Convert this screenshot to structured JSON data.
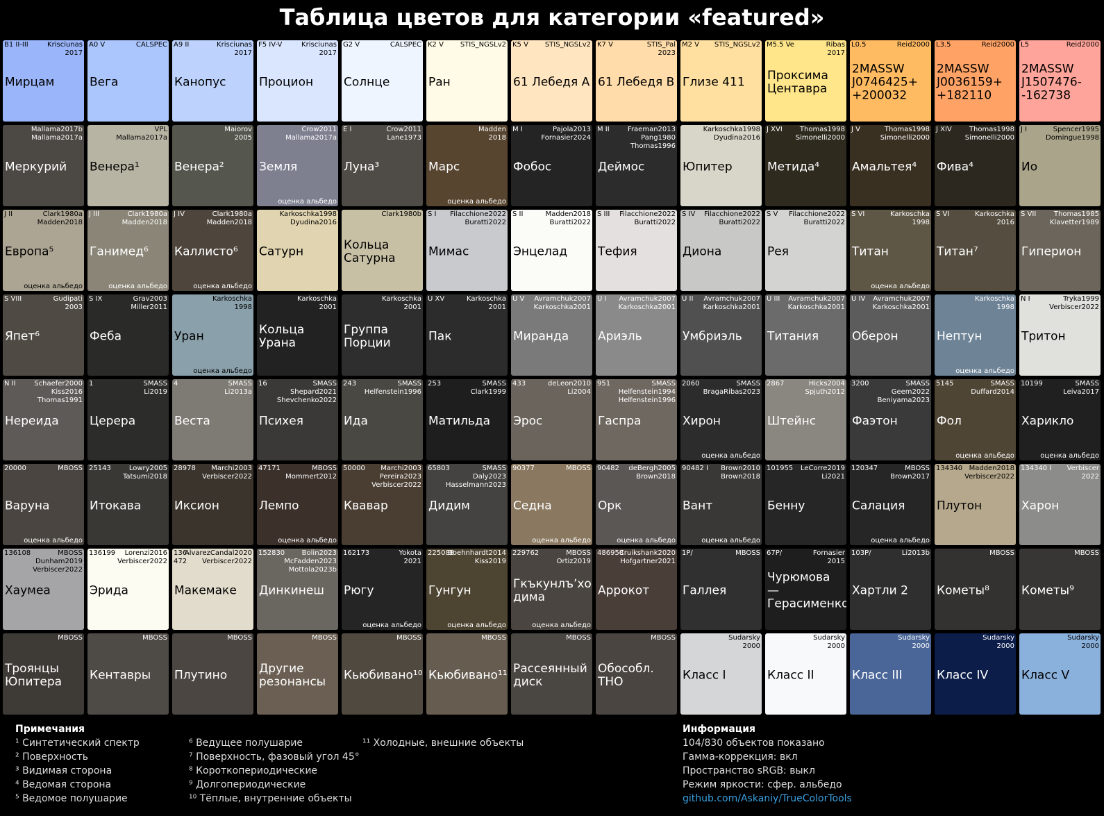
{
  "title": "Таблица цветов для категории «featured»",
  "tiles": [
    {
      "tag": "B1 II-III",
      "ref": "Krisciunas\n2017",
      "name": "Мирцам",
      "color": "#9ab5fa"
    },
    {
      "tag": "A0 V",
      "ref": "CALSPEC",
      "name": "Вега",
      "color": "#abc5fd"
    },
    {
      "tag": "A9 II",
      "ref": "Krisciunas\n2017",
      "name": "Канопус",
      "color": "#bdd3fd"
    },
    {
      "tag": "F5 IV-V",
      "ref": "Krisciunas\n2017",
      "name": "Процион",
      "color": "#d9e6fe"
    },
    {
      "tag": "G2 V",
      "ref": "CALSPEC",
      "name": "Солнце",
      "color": "#eef5ff"
    },
    {
      "tag": "K2 V",
      "ref": "STIS_NGSLv2",
      "name": "Ран",
      "color": "#fffbe6"
    },
    {
      "tag": "K5 V",
      "ref": "STIS_NGSLv2",
      "name": "61 Лебедя А",
      "color": "#ffe5c0"
    },
    {
      "tag": "K7 V",
      "ref": "STIS_Pal\n2023",
      "name": "61 Лебедя B",
      "color": "#ffdcaa"
    },
    {
      "tag": "M2 V",
      "ref": "STIS_NGSLv2",
      "name": "Глизе 411",
      "color": "#ffe0a0"
    },
    {
      "tag": "M5.5 Ve",
      "ref": "Ribas\n2017",
      "name": "Проксима\nЦентавра",
      "color": "#ffe68a"
    },
    {
      "tag": "L0.5",
      "ref": "Reid2000",
      "name": "2MASSW\nJ0746425+\n+200032",
      "color": "#ffbb62"
    },
    {
      "tag": "L3.5",
      "ref": "Reid2000",
      "name": "2MASSW\nJ0036159+\n+182110",
      "color": "#ffa265"
    },
    {
      "tag": "L5",
      "ref": "Reid2000",
      "name": "2MASSW\nJ1507476-\n-162738",
      "color": "#ffa49a"
    },
    {
      "ref": "Mallama2017b\nMallama2017a",
      "name": "Меркурий",
      "color": "#4c4944"
    },
    {
      "ref": "VPL\nMallama2017a",
      "name": "Венера¹",
      "color": "#b8b4a4"
    },
    {
      "ref": "Maiorov\n2005",
      "name": "Венера²",
      "color": "#55564e"
    },
    {
      "ref": "Crow2011\nMallama2017a",
      "name": "Земля",
      "note": "оценка альбедо",
      "color": "#7e8090"
    },
    {
      "tag": "E I",
      "ref": "Crow2011\nLane1973",
      "name": "Луна³",
      "color": "#4f4b46"
    },
    {
      "ref": "Madden\n2018",
      "name": "Марс",
      "note": "оценка альбедо",
      "color": "#574530"
    },
    {
      "tag": "M I",
      "ref": "Pajola2013\nFornasier2024",
      "name": "Фобос",
      "color": "#242424"
    },
    {
      "tag": "M II",
      "ref": "Fraeman2013\nPang1980\nThomas1996",
      "name": "Деймос",
      "color": "#2c2c2c"
    },
    {
      "ref": "Karkoschka1998\nDyudina2016",
      "name": "Юпитер",
      "color": "#d8d6c8"
    },
    {
      "tag": "J XVI",
      "ref": "Thomas1998\nSimonelli2000",
      "name": "Метида⁴",
      "color": "#2e2a1e"
    },
    {
      "tag": "J V",
      "ref": "Thomas1998\nSimonelli2000",
      "name": "Амальтея⁴",
      "color": "#3a3022"
    },
    {
      "tag": "J XIV",
      "ref": "Thomas1998\nSimonelli2000",
      "name": "Фива⁴",
      "color": "#2c2820"
    },
    {
      "tag": "J I",
      "ref": "Spencer1995\nDomingue1998",
      "name": "Ио",
      "color": "#a9a48a"
    },
    {
      "tag": "J II",
      "ref": "Clark1980a\nMadden2018",
      "name": "Европа⁵",
      "note": "оценка альбедо",
      "color": "#ada593"
    },
    {
      "tag": "J III",
      "ref": "Clark1980a\nMadden2018",
      "name": "Ганимед⁶",
      "note": "оценка альбедо",
      "color": "#8a8577"
    },
    {
      "tag": "J IV",
      "ref": "Clark1980a\nMadden2018",
      "name": "Каллисто⁶",
      "note": "оценка альбедо",
      "color": "#4e463d"
    },
    {
      "ref": "Karkoschka1998\nDyudina2016",
      "name": "Сатурн",
      "color": "#e1d4b0"
    },
    {
      "ref": "Clark1980b",
      "name": "Кольца\nСатурна",
      "color": "#c8c0a5"
    },
    {
      "tag": "S I",
      "ref": "Filacchione2022\nBuratti2022",
      "name": "Мимас",
      "color": "#c9cace"
    },
    {
      "tag": "S II",
      "ref": "Madden2018\nBuratti2022",
      "name": "Энцелад",
      "color": "#fbfbf8"
    },
    {
      "tag": "S III",
      "ref": "Filacchione2022\nBuratti2022",
      "name": "Тефия",
      "color": "#e3e0df"
    },
    {
      "tag": "S IV",
      "ref": "Filacchione2022\nBuratti2022",
      "name": "Диона",
      "color": "#c8c8c7"
    },
    {
      "tag": "S V",
      "ref": "Filacchione2022\nBuratti2022",
      "name": "Рея",
      "color": "#d3d3d2"
    },
    {
      "tag": "S VI",
      "ref": "Karkoschka\n1998",
      "name": "Титан",
      "note": "оценка альбедо",
      "color": "#5f5746"
    },
    {
      "tag": "S VI",
      "ref": "Karkoschka\n2016",
      "name": "Титан⁷",
      "color": "#554e40"
    },
    {
      "tag": "S VII",
      "ref": "Thomas1985\nKlavetter1989",
      "name": "Гиперион",
      "color": "#6b655b"
    },
    {
      "tag": "S VIII",
      "ref": "Gudipati\n2003",
      "name": "Япет⁶",
      "color": "#4f4a43"
    },
    {
      "tag": "S IX",
      "ref": "Grav2003\nMiller2011",
      "name": "Феба",
      "color": "#2a2a29"
    },
    {
      "ref": "Karkoschka\n1998",
      "name": "Уран",
      "note": "оценка альбедо",
      "color": "#8aa0aa"
    },
    {
      "ref": "Karkoschka\n2001",
      "name": "Кольца Урана",
      "color": "#222222"
    },
    {
      "ref": "Karkoschka\n2001",
      "name": "Группа\nПорции",
      "color": "#2e2e2e"
    },
    {
      "tag": "U XV",
      "ref": "Karkoschka\n2001",
      "name": "Пак",
      "color": "#2c2c2c"
    },
    {
      "tag": "U V",
      "ref": "Avramchuk2007\nKarkoschka2001",
      "name": "Миранда",
      "color": "#7a7a7a"
    },
    {
      "tag": "U I",
      "ref": "Avramchuk2007\nKarkoschka2001",
      "name": "Ариэль",
      "color": "#8a8a8a"
    },
    {
      "tag": "U II",
      "ref": "Avramchuk2007\nKarkoschka2001",
      "name": "Умбриэль",
      "color": "#505050"
    },
    {
      "tag": "U III",
      "ref": "Avramchuk2007\nKarkoschka2001",
      "name": "Титания",
      "color": "#6b6b6b"
    },
    {
      "tag": "U IV",
      "ref": "Avramchuk2007\nKarkoschka2001",
      "name": "Оберон",
      "color": "#5c5c5c"
    },
    {
      "ref": "Karkoschka\n1998",
      "name": "Нептун",
      "note": "оценка альбедо",
      "color": "#6e8396"
    },
    {
      "tag": "N I",
      "ref": "Tryka1999\nVerbiscer2022",
      "name": "Тритон",
      "color": "#e0e0dc"
    },
    {
      "tag": "N II",
      "ref": "Schaefer2000\nKiss2016\nThomas1991",
      "name": "Нереида",
      "color": "#5e5a57"
    },
    {
      "tag": "1",
      "ref": "SMASS\nLi2019",
      "name": "Церера",
      "color": "#2c2c2b"
    },
    {
      "tag": "4",
      "ref": "SMASS\nLi2013a",
      "name": "Веста",
      "color": "#7e7b75"
    },
    {
      "tag": "16",
      "ref": "SMASS\nShepard2021\nShevchenko2022",
      "name": "Психея",
      "color": "#3a3937"
    },
    {
      "tag": "243",
      "ref": "SMASS\nHelfenstein1996",
      "name": "Ида",
      "color": "#4a4843"
    },
    {
      "tag": "253",
      "ref": "SMASS\nClark1999",
      "name": "Матильда",
      "color": "#1e1e1e"
    },
    {
      "tag": "433",
      "ref": "deLeon2010\nLi2004",
      "name": "Эрос",
      "color": "#6a645c"
    },
    {
      "tag": "951",
      "ref": "SMASS\nHelfenstein1994\nHelfenstein1996",
      "name": "Гаспра",
      "color": "#6f6860"
    },
    {
      "tag": "2060",
      "ref": "SMASS\nBragaRibas2023",
      "name": "Хирон",
      "note": "оценка альбедо",
      "color": "#2c2c2c"
    },
    {
      "tag": "2867",
      "ref": "Hicks2004\nSpjuth2012",
      "name": "Штейнс",
      "color": "#8a8680"
    },
    {
      "tag": "3200",
      "ref": "SMASS\nGeem2022\nBeniyama2023",
      "name": "Фаэтон",
      "color": "#3a3a3a"
    },
    {
      "tag": "5145",
      "ref": "SMASS\nDuffard2014",
      "name": "Фол",
      "note": "оценка альбедо",
      "color": "#4f4535"
    },
    {
      "tag": "10199",
      "ref": "SMASS\nLeiva2017",
      "name": "Харикло",
      "note": "оценка альбедо",
      "color": "#202020"
    },
    {
      "tag": "20000",
      "ref": "MBOSS",
      "name": "Варуна",
      "note": "оценка альбедо",
      "color": "#4a4540"
    },
    {
      "tag": "25143",
      "ref": "Lowry2005\nTatsumi2018",
      "name": "Итокава",
      "color": "#3a3835"
    },
    {
      "tag": "28978",
      "ref": "Marchi2003\nVerbiscer2022",
      "name": "Иксион",
      "color": "#3a342c"
    },
    {
      "tag": "47171",
      "ref": "MBOSS\nMommert2012",
      "name": "Лемпо",
      "note": "оценка альбедо",
      "color": "#3b302a"
    },
    {
      "tag": "50000",
      "ref": "Marchi2003\nPereira2023\nVerbiscer2022",
      "name": "Квавар",
      "color": "#4a3e32"
    },
    {
      "tag": "65803",
      "ref": "SMASS\nDaly2023\nHasselmann2023",
      "name": "Дидим",
      "color": "#454341"
    },
    {
      "tag": "90377",
      "ref": "MBOSS",
      "name": "Седна",
      "note": "оценка альбедо",
      "color": "#8a7860"
    },
    {
      "tag": "90482",
      "ref": "deBergh2005\nBrown2018",
      "name": "Орк",
      "note": "оценка альбедо",
      "color": "#5a5755"
    },
    {
      "tag": "90482 I",
      "ref": "Brown2010\nBrown2018",
      "name": "Вант",
      "note": "оценка альбедо",
      "color": "#3a3836"
    },
    {
      "tag": "101955",
      "ref": "LeCorre2019\nLi2021",
      "name": "Бенну",
      "color": "#262626"
    },
    {
      "tag": "120347",
      "ref": "MBOSS\nBrown2017",
      "name": "Салация",
      "note": "оценка альбедо",
      "color": "#262626"
    },
    {
      "tag": "134340",
      "ref": "Madden2018\nVerbiscer2022",
      "name": "Плутон",
      "color": "#b6a88c"
    },
    {
      "tag": "134340 I",
      "ref": "Verbiscer\n2022",
      "name": "Харон",
      "color": "#8c8c8a"
    },
    {
      "tag": "136108",
      "ref": "MBOSS\nDunham2019\nVerbiscer2022",
      "name": "Хаумеа",
      "color": "#a5a5a8"
    },
    {
      "tag": "136199",
      "ref": "Lorenzi2016\nVerbiscer2022",
      "name": "Эрида",
      "color": "#fdfcf3"
    },
    {
      "tag": "136-\n472",
      "ref": "AlvarezCandal2020\nVerbiscer2022",
      "name": "Макемаке",
      "color": "#e2dccc"
    },
    {
      "tag": "152830",
      "ref": "Bolin2023\nMcFadden2023\nMottola2023b",
      "name": "Динкинеш",
      "color": "#6a6660"
    },
    {
      "tag": "162173",
      "ref": "Yokota\n2021",
      "name": "Рюгу",
      "note": "оценка альбедо",
      "color": "#252525"
    },
    {
      "tag": "225088",
      "ref": "Boehnhardt2014\nKiss2019",
      "name": "Гунгун",
      "note": "оценка альбедо",
      "color": "#4e4432"
    },
    {
      "tag": "229762",
      "ref": "MBOSS\nOrtiz2019",
      "name": "Гкъкунлъʼхом-\nдима",
      "note": "оценка альбедо",
      "color": "#4a4540"
    },
    {
      "tag": "486958",
      "ref": "Cruikshank2020\nHofgartner2021",
      "name": "Аррокот",
      "color": "#4a3e38"
    },
    {
      "tag": "1P/",
      "ref": "MBOSS",
      "name": "Галлея",
      "color": "#303030"
    },
    {
      "tag": "67P/",
      "ref": "Fornasier\n2015",
      "name": "Чурюмова —\nГерасименко",
      "color": "#1e1e1e"
    },
    {
      "tag": "103P/",
      "ref": "Li2013b",
      "name": "Хартли 2",
      "color": "#2f2f2f"
    },
    {
      "ref": "MBOSS",
      "name": "Кометы⁸",
      "color": "#333231"
    },
    {
      "ref": "MBOSS",
      "name": "Кометы⁹",
      "color": "#383634"
    },
    {
      "ref": "MBOSS",
      "name": "Троянцы\nЮпитера",
      "color": "#3e3b37"
    },
    {
      "ref": "MBOSS",
      "name": "Кентавры",
      "color": "#4e4a45"
    },
    {
      "ref": "MBOSS",
      "name": "Плутино",
      "color": "#4b4641"
    },
    {
      "ref": "MBOSS",
      "name": "Другие\nрезонансы",
      "color": "#6a5f52"
    },
    {
      "ref": "MBOSS",
      "name": "Кьюбивано¹⁰",
      "color": "#50493f"
    },
    {
      "ref": "MBOSS",
      "name": "Кьюбивано¹¹",
      "color": "#665d50"
    },
    {
      "ref": "MBOSS",
      "name": "Рассеянный\nдиск",
      "color": "#4a4642"
    },
    {
      "ref": "MBOSS",
      "name": "Обособл. ТНО",
      "color": "#4a4540"
    },
    {
      "ref": "Sudarsky\n2000",
      "name": "Класс I",
      "color": "#d5d6d8"
    },
    {
      "ref": "Sudarsky\n2000",
      "name": "Класс II",
      "color": "#f8f9fb"
    },
    {
      "ref": "Sudarsky\n2000",
      "name": "Класс III",
      "color": "#4a6698"
    },
    {
      "ref": "Sudarsky\n2000",
      "name": "Класс IV",
      "color": "#0c1d4a"
    },
    {
      "ref": "Sudarsky\n2000",
      "name": "Класс V",
      "color": "#8ab0dc"
    }
  ],
  "notes": {
    "heading": "Примечания",
    "items": [
      "¹ Синтетический спектр",
      "² Поверхность",
      "³ Видимая сторона",
      "⁴ Ведомая сторона",
      "⁵ Ведомое полушарие",
      "⁶ Ведущее полушарие",
      "⁷ Поверхность, фазовый угол 45°",
      "⁸ Короткопериодические",
      "⁹ Долгопериодические",
      "¹⁰ Тёплые, внутренние объекты",
      "¹¹ Холодные, внешние объекты"
    ]
  },
  "info": {
    "heading": "Информация",
    "lines": [
      "104/830 объектов показано",
      "Гамма-коррекция: вкл",
      "Пространство sRGB: выкл",
      "Режим яркости: сфер. альбедо"
    ],
    "link": "github.com/Askaniy/TrueColorTools"
  }
}
